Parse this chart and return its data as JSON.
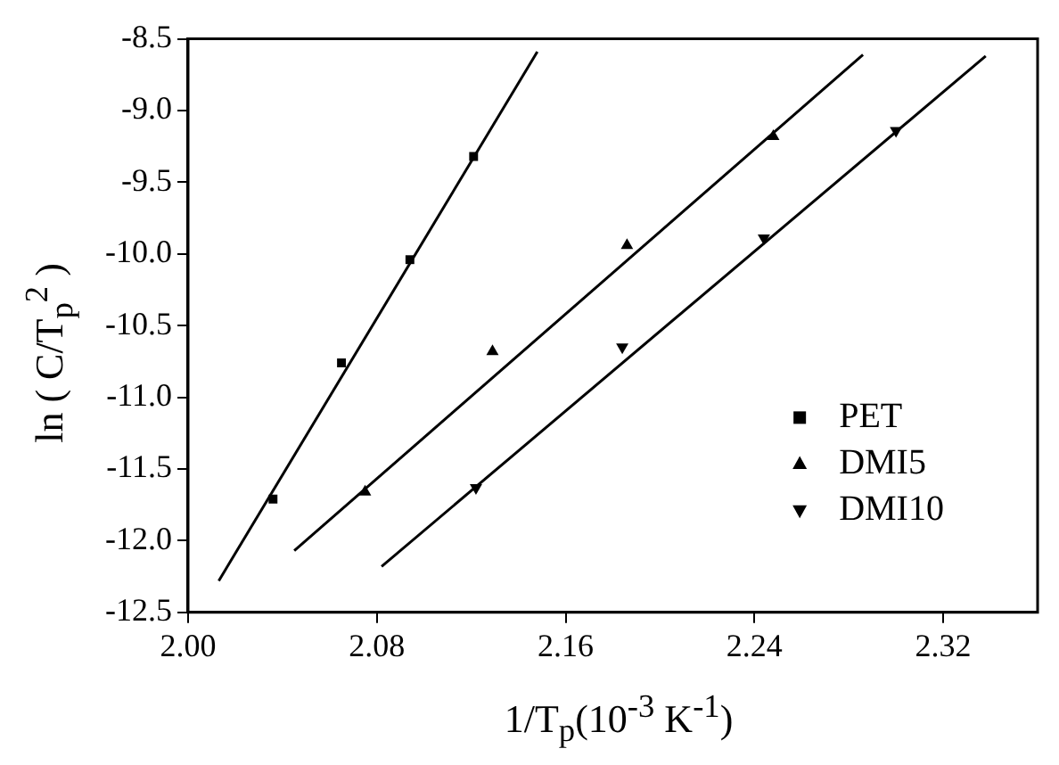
{
  "chart_data": {
    "type": "scatter",
    "xlabel": "1/T$_{p}$(10$^{-3}$ K$^{-1}$)",
    "ylabel": "ln ( C/T$_{p}$$^{2}$ )",
    "xlim": [
      2.0,
      2.36
    ],
    "xticks": [
      {
        "value": 2.0,
        "label": "2.00"
      },
      {
        "value": 2.08,
        "label": "2.08"
      },
      {
        "value": 2.16,
        "label": "2.16"
      },
      {
        "value": 2.24,
        "label": "2.24"
      },
      {
        "value": 2.32,
        "label": "2.32"
      }
    ],
    "ylim": [
      -12.5,
      -8.5
    ],
    "yticks": [
      -12.5,
      {
        "value": -12.0,
        "label": "-12.0"
      },
      -11.5,
      {
        "value": -11.0,
        "label": "-11.0"
      },
      -10.5,
      {
        "value": -10.0,
        "label": "-10.0"
      },
      -9.5,
      {
        "value": -9.0,
        "label": "-9.0"
      },
      -8.5
    ],
    "legend": "right",
    "grid": false,
    "series": [
      {
        "name": "PET",
        "color": "#000000",
        "marker": "square",
        "x": [
          2.036,
          2.065,
          2.094,
          2.121
        ],
        "values": [
          -11.71,
          -10.76,
          -10.04,
          -9.32
        ]
      },
      {
        "name": "DMI5",
        "color": "#000000",
        "marker": "triangle",
        "x": [
          2.075,
          2.129,
          2.186,
          2.248
        ],
        "values": [
          -11.66,
          -10.68,
          -9.94,
          -9.18
        ]
      },
      {
        "name": "DMI10",
        "color": "#000000",
        "marker": "triangle-down",
        "x": [
          2.122,
          2.184,
          2.244,
          2.3
        ],
        "values": [
          -11.63,
          -10.65,
          -9.89,
          -9.14
        ]
      },
      {
        "type": "line",
        "color": "#000000",
        "marker": "none",
        "x": [
          2.013,
          2.148
        ],
        "values": [
          -12.28,
          -8.59
        ]
      },
      {
        "type": "line",
        "color": "#000000",
        "marker": "none",
        "x": [
          2.045,
          2.286
        ],
        "values": [
          -12.07,
          -8.61
        ]
      },
      {
        "type": "line",
        "color": "#000000",
        "marker": "none",
        "x": [
          2.082,
          2.338
        ],
        "values": [
          -12.18,
          -8.62
        ]
      }
    ]
  }
}
